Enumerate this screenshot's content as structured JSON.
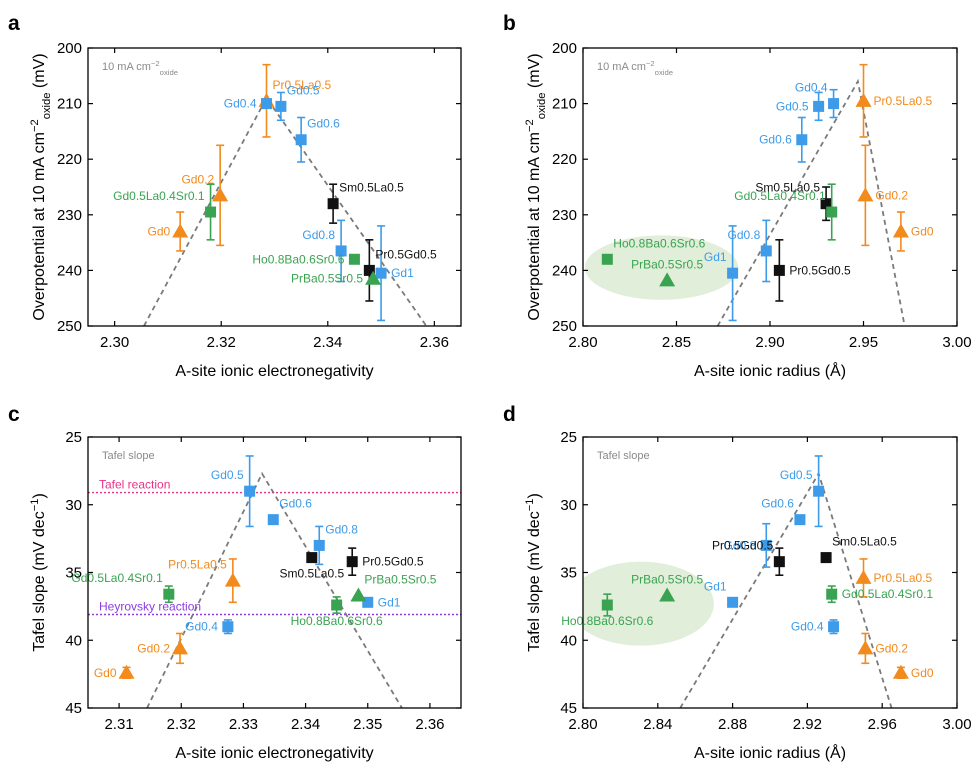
{
  "colors": {
    "orange": "#F28A1C",
    "blue": "#3D9BE9",
    "green": "#3AA351",
    "black": "#111111",
    "grey_text": "#8A8A8A",
    "trend": "#7A7A7A",
    "tafel_line": "#E8338A",
    "heyrovsky_line": "#8E3BE0",
    "ellipse": "#DCEBD3"
  },
  "chart_data": [
    {
      "panel": "a",
      "type": "scatter",
      "xlabel": "A-site ionic electronegativity",
      "ylabel": "Overpotential at 10 mA cm⁻²oxide (mV)",
      "xlim": [
        2.295,
        2.365
      ],
      "ylim": [
        250,
        200
      ],
      "xticks": [
        2.3,
        2.32,
        2.34,
        2.36
      ],
      "xtick_labels": [
        "2.30",
        "2.32",
        "2.34",
        "2.36"
      ],
      "yticks": [
        200,
        210,
        220,
        230,
        240,
        250
      ],
      "ytick_labels": [
        "200",
        "210",
        "220",
        "230",
        "240",
        "250"
      ],
      "annotation": "10 mA cm⁻²oxide",
      "trend_line": [
        [
          2.3055,
          250
        ],
        [
          2.3285,
          209
        ],
        [
          2.3585,
          250
        ]
      ],
      "points": [
        {
          "label": "Gd0",
          "x": 2.3123,
          "y": 233.0,
          "err": 3.5,
          "color": "orange",
          "marker": "triangle",
          "label_pos": "left"
        },
        {
          "label": "Gd0.2",
          "x": 2.3198,
          "y": 226.5,
          "err": 9.0,
          "color": "orange",
          "marker": "triangle",
          "label_pos": "above-left"
        },
        {
          "label": "Pr0.5La0.5",
          "x": 2.3285,
          "y": 209.5,
          "err": 6.5,
          "color": "orange",
          "marker": "triangle",
          "label_pos": "above-right"
        },
        {
          "label": "Gd0.5La0.4Sr0.1",
          "x": 2.318,
          "y": 229.5,
          "err": 5.0,
          "color": "green",
          "marker": "square",
          "label_pos": "above-left"
        },
        {
          "label": "Gd0.4",
          "x": 2.3285,
          "y": 210.0,
          "err": 0,
          "color": "blue",
          "marker": "square",
          "label_pos": "left"
        },
        {
          "label": "Gd0.5",
          "x": 2.3312,
          "y": 210.5,
          "err": 2.5,
          "color": "blue",
          "marker": "square",
          "label_pos": "above-right"
        },
        {
          "label": "Gd0.6",
          "x": 2.335,
          "y": 216.5,
          "err": 4.0,
          "color": "blue",
          "marker": "square",
          "label_pos": "above-right"
        },
        {
          "label": "Gd0.8",
          "x": 2.3425,
          "y": 236.5,
          "err": 5.5,
          "color": "blue",
          "marker": "square",
          "label_pos": "above-left"
        },
        {
          "label": "Gd1",
          "x": 2.35,
          "y": 240.5,
          "err": 8.5,
          "color": "blue",
          "marker": "square",
          "label_pos": "right"
        },
        {
          "label": "Sm0.5La0.5",
          "x": 2.341,
          "y": 228.0,
          "err": 3.5,
          "color": "black",
          "marker": "square",
          "label_pos": "above-right"
        },
        {
          "label": "Pr0.5Gd0.5",
          "x": 2.3478,
          "y": 240.0,
          "err": 5.5,
          "color": "black",
          "marker": "square",
          "label_pos": "above-right"
        },
        {
          "label": "Ho0.8Ba0.6Sr0.6",
          "x": 2.345,
          "y": 238.0,
          "err": 0,
          "color": "green",
          "marker": "square",
          "label_pos": "left"
        },
        {
          "label": "PrBa0.5Sr0.5",
          "x": 2.3485,
          "y": 241.5,
          "err": 0,
          "color": "green",
          "marker": "triangle",
          "label_pos": "left"
        }
      ]
    },
    {
      "panel": "b",
      "type": "scatter",
      "xlabel": "A-site ionic radius (Å)",
      "ylabel": "Overpotential at 10 mA cm⁻²oxide (mV)",
      "xlim": [
        2.8,
        3.0
      ],
      "ylim": [
        250,
        200
      ],
      "xticks": [
        2.8,
        2.85,
        2.9,
        2.95,
        3.0
      ],
      "xtick_labels": [
        "2.80",
        "2.85",
        "2.90",
        "2.95",
        "3.00"
      ],
      "yticks": [
        200,
        210,
        220,
        230,
        240,
        250
      ],
      "ytick_labels": [
        "200",
        "210",
        "220",
        "230",
        "240",
        "250"
      ],
      "annotation": "10 mA cm⁻²oxide",
      "trend_line": [
        [
          2.872,
          250
        ],
        [
          2.947,
          206
        ],
        [
          2.972,
          250
        ]
      ],
      "ellipse": {
        "cx": 2.842,
        "cy": 239.5,
        "rx": 0.041,
        "ry": 5.8
      },
      "points": [
        {
          "label": "Gd0",
          "x": 2.97,
          "y": 233.0,
          "err": 3.5,
          "color": "orange",
          "marker": "triangle",
          "label_pos": "right"
        },
        {
          "label": "Gd0.2",
          "x": 2.951,
          "y": 226.5,
          "err": 9.0,
          "color": "orange",
          "marker": "triangle",
          "label_pos": "right"
        },
        {
          "label": "Pr0.5La0.5",
          "x": 2.95,
          "y": 209.5,
          "err": 6.5,
          "color": "orange",
          "marker": "triangle",
          "label_pos": "right"
        },
        {
          "label": "Gd0.4",
          "x": 2.934,
          "y": 210.0,
          "err": 2.5,
          "color": "blue",
          "marker": "square",
          "label_pos": "above-left"
        },
        {
          "label": "Gd0.5",
          "x": 2.926,
          "y": 210.5,
          "err": 2.5,
          "color": "blue",
          "marker": "square",
          "label_pos": "left"
        },
        {
          "label": "Gd0.6",
          "x": 2.917,
          "y": 216.5,
          "err": 4.0,
          "color": "blue",
          "marker": "square",
          "label_pos": "left"
        },
        {
          "label": "Gd0.8",
          "x": 2.898,
          "y": 236.5,
          "err": 5.5,
          "color": "blue",
          "marker": "square",
          "label_pos": "above-left"
        },
        {
          "label": "Gd1",
          "x": 2.88,
          "y": 240.5,
          "err": 8.5,
          "color": "blue",
          "marker": "square",
          "label_pos": "above-left"
        },
        {
          "label": "Sm0.5La0.5",
          "x": 2.93,
          "y": 228.0,
          "err": 3.0,
          "color": "black",
          "marker": "square",
          "label_pos": "above-left"
        },
        {
          "label": "Pr0.5Gd0.5",
          "x": 2.905,
          "y": 240.0,
          "err": 5.5,
          "color": "black",
          "marker": "square",
          "label_pos": "right"
        },
        {
          "label": "Gd0.5La0.4Sr0.1",
          "x": 2.933,
          "y": 229.5,
          "err": 5.0,
          "color": "green",
          "marker": "square",
          "label_pos": "above-left"
        },
        {
          "label": "Ho0.8Ba0.6Sr0.6",
          "x": 2.813,
          "y": 238.0,
          "err": 0,
          "color": "green",
          "marker": "square",
          "label_pos": "above-right"
        },
        {
          "label": "PrBa0.5Sr0.5",
          "x": 2.845,
          "y": 241.8,
          "err": 0,
          "color": "green",
          "marker": "triangle",
          "label_pos": "above"
        }
      ]
    },
    {
      "panel": "c",
      "type": "scatter",
      "xlabel": "A-site ionic electronegativity",
      "ylabel": "Tafel slope (mV dec⁻¹)",
      "xlim": [
        2.305,
        2.365
      ],
      "ylim": [
        45,
        25
      ],
      "xticks": [
        2.31,
        2.32,
        2.33,
        2.34,
        2.35,
        2.36
      ],
      "xtick_labels": [
        "2.31",
        "2.32",
        "2.33",
        "2.34",
        "2.35",
        "2.36"
      ],
      "yticks": [
        25,
        30,
        35,
        40,
        45
      ],
      "ytick_labels": [
        "25",
        "30",
        "35",
        "40",
        "45"
      ],
      "annotation": "Tafel slope",
      "reference_lines": [
        {
          "label": "Tafel reaction",
          "y": 29.1,
          "color": "tafel_line"
        },
        {
          "label": "Heyrovsky reaction",
          "y": 38.1,
          "color": "heyrovsky_line"
        }
      ],
      "trend_line": [
        [
          2.3145,
          45
        ],
        [
          2.333,
          27.7
        ],
        [
          2.3555,
          45
        ]
      ],
      "points": [
        {
          "label": "Gd0",
          "x": 2.3112,
          "y": 42.4,
          "err": 0.4,
          "color": "orange",
          "marker": "triangle",
          "label_pos": "left"
        },
        {
          "label": "Gd0.2",
          "x": 2.3198,
          "y": 40.6,
          "err": 1.1,
          "color": "orange",
          "marker": "triangle",
          "label_pos": "left"
        },
        {
          "label": "Pr0.5La0.5",
          "x": 2.3283,
          "y": 35.6,
          "err": 1.6,
          "color": "orange",
          "marker": "triangle",
          "label_pos": "above-left"
        },
        {
          "label": "Gd0.5La0.4Sr0.1",
          "x": 2.318,
          "y": 36.6,
          "err": 0.6,
          "color": "green",
          "marker": "square",
          "label_pos": "above-left"
        },
        {
          "label": "Gd0.4",
          "x": 2.3275,
          "y": 39.0,
          "err": 0.5,
          "color": "blue",
          "marker": "square",
          "label_pos": "left"
        },
        {
          "label": "Gd0.5",
          "x": 2.331,
          "y": 29.0,
          "err": 2.6,
          "color": "blue",
          "marker": "square",
          "label_pos": "above-left"
        },
        {
          "label": "Gd0.6",
          "x": 2.3348,
          "y": 31.1,
          "err": 0,
          "color": "blue",
          "marker": "square",
          "label_pos": "above-right"
        },
        {
          "label": "Gd0.8",
          "x": 2.3422,
          "y": 33.0,
          "err": 1.4,
          "color": "blue",
          "marker": "square",
          "label_pos": "above-right"
        },
        {
          "label": "Gd1",
          "x": 2.35,
          "y": 37.2,
          "err": 0,
          "color": "blue",
          "marker": "square",
          "label_pos": "right"
        },
        {
          "label": "Sm0.5La0.5",
          "x": 2.341,
          "y": 33.9,
          "err": 0,
          "color": "black",
          "marker": "square",
          "label_pos": "below"
        },
        {
          "label": "Pr0.5Gd0.5",
          "x": 2.3475,
          "y": 34.2,
          "err": 1.0,
          "color": "black",
          "marker": "square",
          "label_pos": "right"
        },
        {
          "label": "Ho0.8Ba0.6Sr0.6",
          "x": 2.345,
          "y": 37.4,
          "err": 0.6,
          "color": "green",
          "marker": "square",
          "label_pos": "below"
        },
        {
          "label": "PrBa0.5Sr0.5",
          "x": 2.3485,
          "y": 36.7,
          "err": 0,
          "color": "green",
          "marker": "triangle",
          "label_pos": "above-right"
        }
      ]
    },
    {
      "panel": "d",
      "type": "scatter",
      "xlabel": "A-site ionic radius (Å)",
      "ylabel": "Tafel slope (mV dec⁻¹)",
      "xlim": [
        2.8,
        3.0
      ],
      "ylim": [
        45,
        25
      ],
      "xticks": [
        2.8,
        2.84,
        2.88,
        2.92,
        2.96,
        3.0
      ],
      "xtick_labels": [
        "2.80",
        "2.84",
        "2.88",
        "2.92",
        "2.96",
        "3.00"
      ],
      "yticks": [
        25,
        30,
        35,
        40,
        45
      ],
      "ytick_labels": [
        "25",
        "30",
        "35",
        "40",
        "45"
      ],
      "annotation": "Tafel slope",
      "trend_line": [
        [
          2.852,
          45
        ],
        [
          2.926,
          27.7
        ],
        [
          2.965,
          45
        ]
      ],
      "ellipse": {
        "cx": 2.831,
        "cy": 37.3,
        "rx": 0.039,
        "ry": 3.1
      },
      "points": [
        {
          "label": "Gd0",
          "x": 2.97,
          "y": 42.4,
          "err": 0.4,
          "color": "orange",
          "marker": "triangle",
          "label_pos": "right"
        },
        {
          "label": "Gd0.2",
          "x": 2.951,
          "y": 40.6,
          "err": 1.1,
          "color": "orange",
          "marker": "triangle",
          "label_pos": "right"
        },
        {
          "label": "Pr0.5La0.5",
          "x": 2.95,
          "y": 35.4,
          "err": 1.4,
          "color": "orange",
          "marker": "triangle",
          "label_pos": "right"
        },
        {
          "label": "Gd0.4",
          "x": 2.934,
          "y": 39.0,
          "err": 0.5,
          "color": "blue",
          "marker": "square",
          "label_pos": "left"
        },
        {
          "label": "Gd0.5",
          "x": 2.926,
          "y": 29.0,
          "err": 2.6,
          "color": "blue",
          "marker": "square",
          "label_pos": "above-left"
        },
        {
          "label": "Gd0.6",
          "x": 2.916,
          "y": 31.1,
          "err": 0,
          "color": "blue",
          "marker": "square",
          "label_pos": "above-left"
        },
        {
          "label": "Gd0.8",
          "x": 2.898,
          "y": 33.0,
          "err": 1.6,
          "color": "blue",
          "marker": "square",
          "label_pos": "left"
        },
        {
          "label": "Gd1",
          "x": 2.88,
          "y": 37.2,
          "err": 0,
          "color": "blue",
          "marker": "square",
          "label_pos": "above-left"
        },
        {
          "label": "Sm0.5La0.5",
          "x": 2.93,
          "y": 33.9,
          "err": 0,
          "color": "black",
          "marker": "square",
          "label_pos": "above-right"
        },
        {
          "label": "Pr0.5Gd0.5",
          "x": 2.905,
          "y": 34.2,
          "err": 1.0,
          "color": "black",
          "marker": "square",
          "label_pos": "above-left"
        },
        {
          "label": "Gd0.5La0.4Sr0.1",
          "x": 2.933,
          "y": 36.6,
          "err": 0.6,
          "color": "green",
          "marker": "square",
          "label_pos": "right"
        },
        {
          "label": "Ho0.8Ba0.6Sr0.6",
          "x": 2.813,
          "y": 37.4,
          "err": 0.8,
          "color": "green",
          "marker": "square",
          "label_pos": "below"
        },
        {
          "label": "PrBa0.5Sr0.5",
          "x": 2.845,
          "y": 36.7,
          "err": 0,
          "color": "green",
          "marker": "triangle",
          "label_pos": "above"
        }
      ]
    }
  ]
}
